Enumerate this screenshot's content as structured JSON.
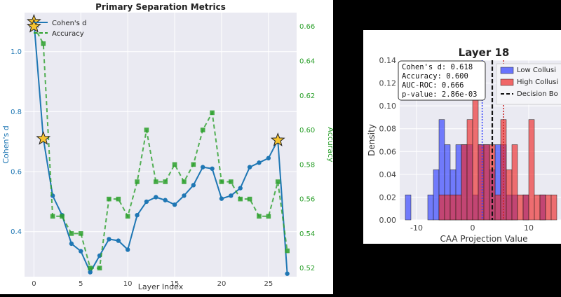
{
  "chart_data": [
    {
      "type": "line",
      "title": "Primary Separation Metrics",
      "xlabel": "Layer Index",
      "ylabel": "Cohen's d",
      "y2label": "Accuracy",
      "x": [
        0,
        1,
        2,
        3,
        4,
        5,
        6,
        7,
        8,
        9,
        10,
        11,
        12,
        13,
        14,
        15,
        16,
        17,
        18,
        19,
        20,
        21,
        22,
        23,
        24,
        25,
        26,
        27
      ],
      "xlim": [
        -1,
        28
      ],
      "xticks": [
        0,
        5,
        10,
        15,
        20,
        25
      ],
      "ylim": [
        0.25,
        1.13
      ],
      "yticks": [
        0.4,
        0.6,
        0.8,
        1.0
      ],
      "y2lim": [
        0.515,
        0.668
      ],
      "y2ticks": [
        0.52,
        0.54,
        0.56,
        0.58,
        0.6,
        0.62,
        0.64,
        0.66
      ],
      "grid": true,
      "legend": "top-left",
      "series": [
        {
          "name": "Cohen's d",
          "axis": "left",
          "style": "solid",
          "marker": "circle",
          "color": "#1f77b4",
          "values": [
            1.1,
            0.71,
            0.52,
            0.455,
            0.36,
            0.335,
            0.265,
            0.32,
            0.375,
            0.37,
            0.34,
            0.455,
            0.5,
            0.515,
            0.505,
            0.49,
            0.52,
            0.555,
            0.615,
            0.61,
            0.51,
            0.52,
            0.545,
            0.615,
            0.63,
            0.645,
            0.705,
            0.26
          ]
        },
        {
          "name": "Accuracy",
          "axis": "right",
          "style": "dashed",
          "marker": "square",
          "color": "#2ca02c",
          "values": [
            0.66,
            0.65,
            0.55,
            0.55,
            0.54,
            0.54,
            0.52,
            0.52,
            0.56,
            0.56,
            0.55,
            0.57,
            0.6,
            0.57,
            0.57,
            0.58,
            0.57,
            0.58,
            0.6,
            0.61,
            0.57,
            0.57,
            0.56,
            0.56,
            0.55,
            0.55,
            0.57,
            0.53
          ]
        }
      ],
      "highlights": [
        {
          "layer": 0,
          "series": "both"
        },
        {
          "layer": 1,
          "series": "Cohen's d"
        },
        {
          "layer": 26,
          "series": "Cohen's d"
        }
      ],
      "highlight_color": "#f7c531"
    },
    {
      "type": "histogram",
      "title": "Layer 18",
      "xlabel": "CAA Projection Value",
      "ylabel": "Density",
      "xlim": [
        -13,
        17
      ],
      "xticks": [
        -10,
        0,
        10
      ],
      "ylim": [
        0,
        0.14
      ],
      "yticks": [
        0.0,
        0.02,
        0.04,
        0.06,
        0.08,
        0.1,
        0.12,
        0.14
      ],
      "bin_width": 1,
      "grid": true,
      "stats_box": [
        "Cohen's d: 0.618",
        "Accuracy: 0.600",
        "AUC-ROC: 0.666",
        "p-value: 2.86e-03"
      ],
      "legend_labels": [
        "Low Collusi",
        "High Collusi",
        "Decision Bo"
      ],
      "series": [
        {
          "name": "Low Collusion",
          "color": "#2e3dff",
          "bins": [
            [
              -12,
              0.022
            ],
            [
              -8,
              0.022
            ],
            [
              -7,
              0.044
            ],
            [
              -6,
              0.088
            ],
            [
              -5,
              0.066
            ],
            [
              -4,
              0.044
            ],
            [
              -3,
              0.066
            ],
            [
              -2,
              0.066
            ],
            [
              -1,
              0.066
            ],
            [
              0,
              0.022
            ],
            [
              1,
              0.066
            ],
            [
              2,
              0.066
            ],
            [
              3,
              0.044
            ],
            [
              4,
              0.066
            ],
            [
              5,
              0.066
            ],
            [
              6,
              0.022
            ],
            [
              7,
              0.022
            ],
            [
              9,
              0.022
            ],
            [
              12,
              0.022
            ]
          ],
          "mean": 1.7
        },
        {
          "name": "High Collusion",
          "color": "#ee2a2a",
          "bins": [
            [
              -6,
              0.022
            ],
            [
              -5,
              0.022
            ],
            [
              -4,
              0.022
            ],
            [
              -3,
              0.022
            ],
            [
              -2,
              0.066
            ],
            [
              -1,
              0.088
            ],
            [
              0,
              0.11
            ],
            [
              1,
              0.066
            ],
            [
              2,
              0.066
            ],
            [
              3,
              0.066
            ],
            [
              4,
              0.022
            ],
            [
              5,
              0.088
            ],
            [
              6,
              0.044
            ],
            [
              7,
              0.066
            ],
            [
              8,
              0.022
            ],
            [
              9,
              0.022
            ],
            [
              10,
              0.088
            ],
            [
              11,
              0.022
            ],
            [
              12,
              0.022
            ],
            [
              13,
              0.022
            ],
            [
              14,
              0.022
            ]
          ],
          "mean": 5.5
        }
      ],
      "decision_boundary": 3.5,
      "markers": [
        1.7,
        5.5
      ]
    }
  ]
}
